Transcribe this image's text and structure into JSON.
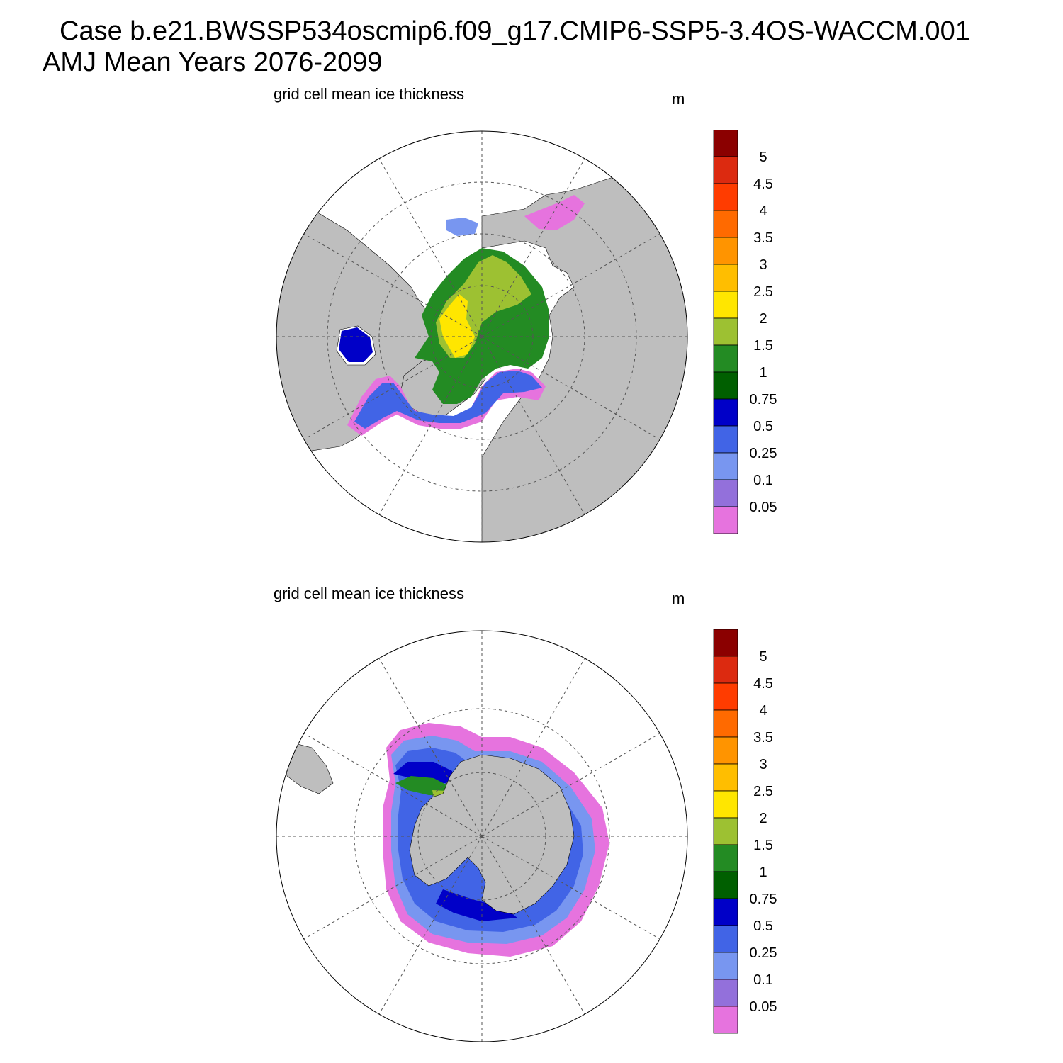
{
  "title": {
    "line1": "Case b.e21.BWSSP534oscmip6.f09_g17.CMIP6-SSP5-3.4OS-WACCM.001",
    "line2": "AMJ Mean   Years 2076-2099"
  },
  "panels": [
    {
      "id": "nh",
      "hemisphere": "north",
      "title": "grid cell mean ice thickness",
      "units": "m"
    },
    {
      "id": "sh",
      "hemisphere": "south",
      "title": "grid cell mean ice thickness",
      "units": "m"
    }
  ],
  "colorbar": {
    "labels": [
      "5",
      "4.5",
      "4",
      "3.5",
      "3",
      "2.5",
      "2",
      "1.5",
      "1",
      "0.75",
      "0.5",
      "0.25",
      "0.1",
      "0.05"
    ],
    "colors_top_to_bottom": [
      "#8b0000",
      "#dc2a10",
      "#ff3c00",
      "#ff6a00",
      "#ff9400",
      "#ffbe00",
      "#ffe600",
      "#9dc132",
      "#238b23",
      "#005f00",
      "#0000c8",
      "#4164e6",
      "#7896f0",
      "#9370db",
      "#e673de"
    ]
  },
  "colors": {
    "land": "#bebebe",
    "ocean": "#ffffff",
    "grid": "#555555"
  }
}
